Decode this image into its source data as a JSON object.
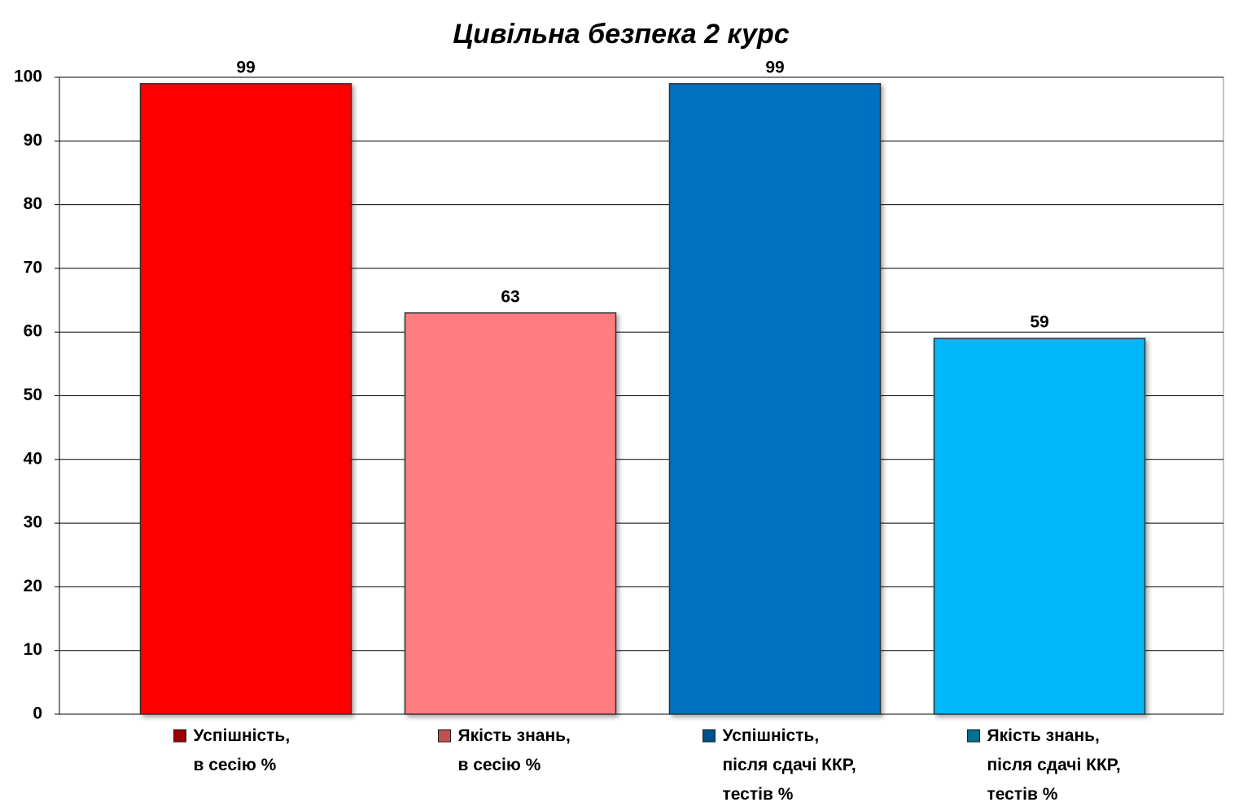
{
  "chart_data": {
    "type": "bar",
    "title": "Цивільна безпека 2 курс",
    "categories": [
      "Успішність,\nв сесію %",
      "Якість знань,\nв сесію %",
      "Успішність,\nпісля сдачі ККР,\nтестів %",
      "Якість знань,\nпісля сдачі ККР,\nтестів %"
    ],
    "values": [
      99,
      63,
      99,
      59
    ],
    "colors": [
      "#ff0000",
      "#ff7c80",
      "#0070c0",
      "#00b8f8"
    ],
    "marker_colors": [
      "#9c0000",
      "#c05050",
      "#00508a",
      "#006f90"
    ],
    "ylim": [
      0,
      100
    ],
    "yticks": [
      0,
      10,
      20,
      30,
      40,
      50,
      60,
      70,
      80,
      90,
      100
    ],
    "grid": true
  }
}
